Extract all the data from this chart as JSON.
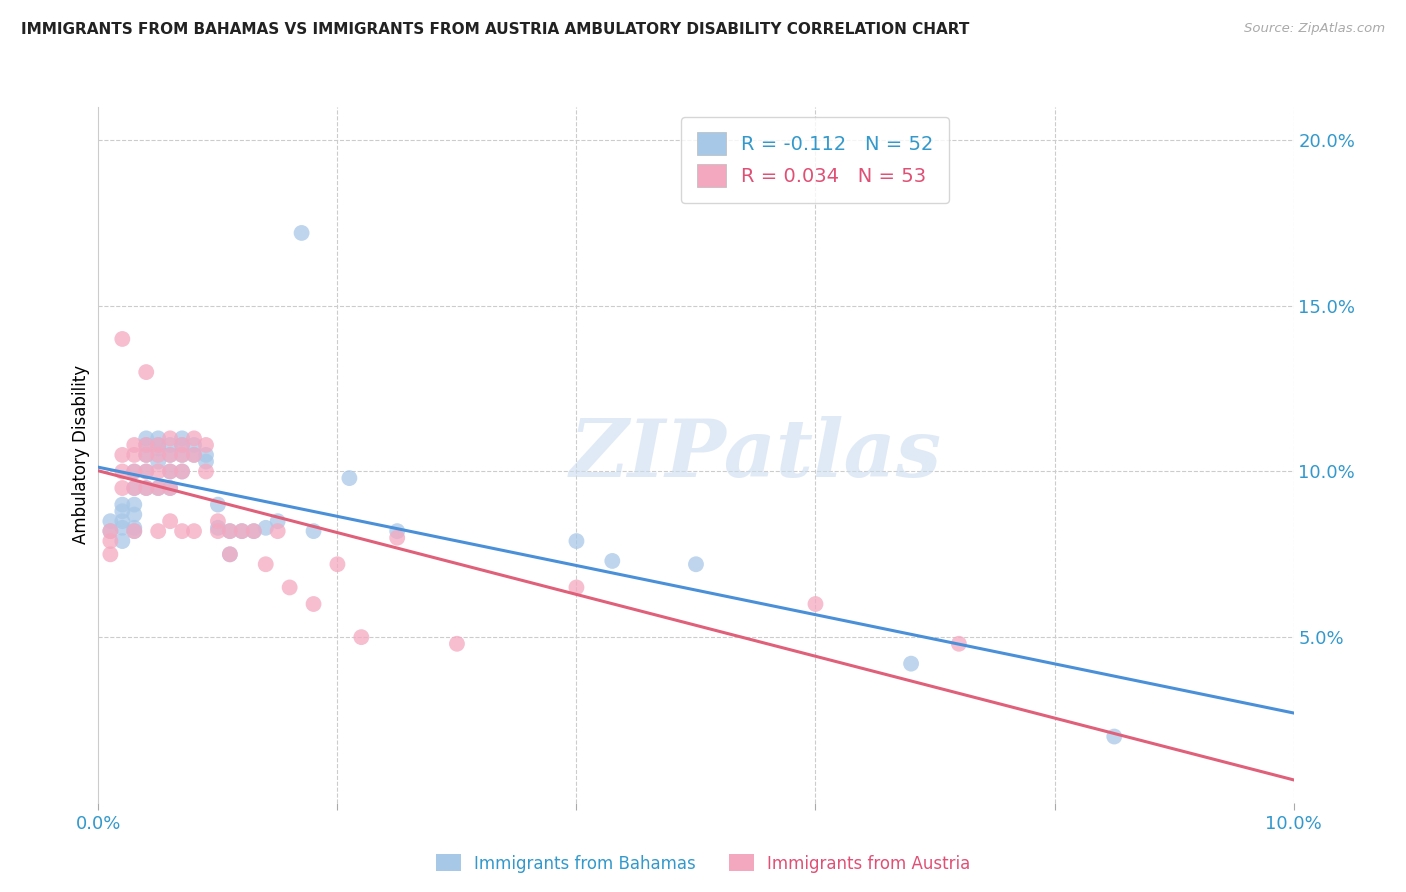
{
  "title": "IMMIGRANTS FROM BAHAMAS VS IMMIGRANTS FROM AUSTRIA AMBULATORY DISABILITY CORRELATION CHART",
  "source": "Source: ZipAtlas.com",
  "ylabel": "Ambulatory Disability",
  "label_bahamas": "Immigrants from Bahamas",
  "label_austria": "Immigrants from Austria",
  "xlim": [
    0.0,
    0.1
  ],
  "ylim": [
    0.0,
    0.21
  ],
  "x_ticks": [
    0.0,
    0.02,
    0.04,
    0.06,
    0.08,
    0.1
  ],
  "y_ticks": [
    0.0,
    0.05,
    0.1,
    0.15,
    0.2
  ],
  "y_tick_labels": [
    "",
    "5.0%",
    "10.0%",
    "15.0%",
    "20.0%"
  ],
  "bahamas_color": "#a8c8e8",
  "austria_color": "#f4a8c0",
  "bahamas_R": -0.112,
  "bahamas_N": 52,
  "austria_R": 0.034,
  "austria_N": 53,
  "bahamas_line_color": "#4a90d9",
  "austria_line_color": "#e0607a",
  "watermark": "ZIPatlas",
  "bahamas_x": [
    0.001,
    0.001,
    0.002,
    0.002,
    0.002,
    0.002,
    0.002,
    0.003,
    0.003,
    0.003,
    0.003,
    0.003,
    0.003,
    0.004,
    0.004,
    0.004,
    0.004,
    0.004,
    0.005,
    0.005,
    0.005,
    0.005,
    0.005,
    0.006,
    0.006,
    0.006,
    0.006,
    0.007,
    0.007,
    0.007,
    0.007,
    0.008,
    0.008,
    0.009,
    0.009,
    0.01,
    0.01,
    0.011,
    0.011,
    0.012,
    0.013,
    0.014,
    0.015,
    0.017,
    0.018,
    0.021,
    0.025,
    0.04,
    0.043,
    0.05,
    0.068,
    0.085
  ],
  "bahamas_y": [
    0.082,
    0.085,
    0.09,
    0.085,
    0.083,
    0.079,
    0.088,
    0.1,
    0.095,
    0.09,
    0.087,
    0.083,
    0.082,
    0.11,
    0.108,
    0.105,
    0.1,
    0.095,
    0.11,
    0.108,
    0.107,
    0.103,
    0.095,
    0.108,
    0.105,
    0.1,
    0.095,
    0.11,
    0.108,
    0.105,
    0.1,
    0.108,
    0.105,
    0.105,
    0.103,
    0.09,
    0.083,
    0.082,
    0.075,
    0.082,
    0.082,
    0.083,
    0.085,
    0.172,
    0.082,
    0.098,
    0.082,
    0.079,
    0.073,
    0.072,
    0.042,
    0.02
  ],
  "austria_x": [
    0.001,
    0.001,
    0.001,
    0.002,
    0.002,
    0.002,
    0.002,
    0.003,
    0.003,
    0.003,
    0.003,
    0.003,
    0.004,
    0.004,
    0.004,
    0.004,
    0.004,
    0.005,
    0.005,
    0.005,
    0.005,
    0.005,
    0.006,
    0.006,
    0.006,
    0.006,
    0.006,
    0.007,
    0.007,
    0.007,
    0.007,
    0.008,
    0.008,
    0.008,
    0.009,
    0.009,
    0.01,
    0.01,
    0.011,
    0.011,
    0.012,
    0.013,
    0.014,
    0.015,
    0.016,
    0.018,
    0.02,
    0.022,
    0.025,
    0.03,
    0.04,
    0.06,
    0.072
  ],
  "austria_y": [
    0.082,
    0.079,
    0.075,
    0.14,
    0.105,
    0.1,
    0.095,
    0.108,
    0.105,
    0.1,
    0.095,
    0.082,
    0.13,
    0.108,
    0.105,
    0.1,
    0.095,
    0.108,
    0.105,
    0.1,
    0.095,
    0.082,
    0.11,
    0.105,
    0.1,
    0.095,
    0.085,
    0.108,
    0.105,
    0.1,
    0.082,
    0.11,
    0.105,
    0.082,
    0.108,
    0.1,
    0.085,
    0.082,
    0.082,
    0.075,
    0.082,
    0.082,
    0.072,
    0.082,
    0.065,
    0.06,
    0.072,
    0.05,
    0.08,
    0.048,
    0.065,
    0.06,
    0.048
  ]
}
